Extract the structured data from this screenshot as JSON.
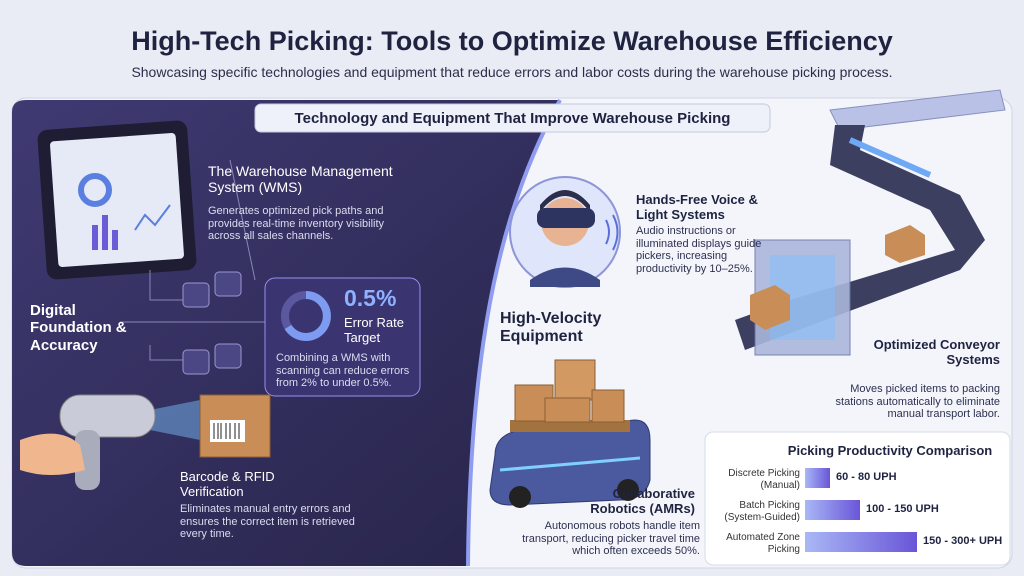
{
  "header": {
    "title": "High-Tech Picking: Tools to Optimize Warehouse Efficiency",
    "subtitle": "Showcasing specific technologies and equipment that reduce errors and labor costs during the warehouse picking process."
  },
  "section_title": "Technology and Equipment That Improve Warehouse Picking",
  "digital": {
    "label": "Digital Foundation & Accuracy",
    "wms": {
      "title": "The Warehouse Management System (WMS)",
      "text": "Generates optimized pick paths and provides real-time inventory visibility across all sales channels."
    },
    "stat": {
      "value": "0.5%",
      "label": "Error Rate Target",
      "text": "Combining a WMS with scanning can reduce errors from 2% to under 0.5%."
    },
    "barcode": {
      "title": "Barcode & RFID Verification",
      "text": "Eliminates manual entry errors and ensures the correct item is retrieved every time."
    }
  },
  "equipment": {
    "label": "High-Velocity Equipment",
    "voice": {
      "title": "Hands-Free Voice & Light Systems",
      "text": "Audio instructions or illuminated displays guide pickers, increasing productivity by 10–25%."
    },
    "conveyor": {
      "title": "Optimized Conveyor Systems",
      "text": "Moves picked items to packing stations automatically to eliminate manual transport labor."
    },
    "amr": {
      "title": "Collaborative Robotics (AMRs)",
      "text": "Autonomous robots handle item transport, reducing picker travel time which often exceeds 50%."
    }
  },
  "comparison": {
    "title": "Picking Productivity Comparison",
    "rows": [
      {
        "label": "Discrete Picking (Manual)",
        "value": "60 - 80 UPH"
      },
      {
        "label": "Batch Picking (System-Guided)",
        "value": "100 - 150 UPH"
      },
      {
        "label": "Automated Zone Picking",
        "value": "150 - 300+ UPH"
      }
    ]
  }
}
